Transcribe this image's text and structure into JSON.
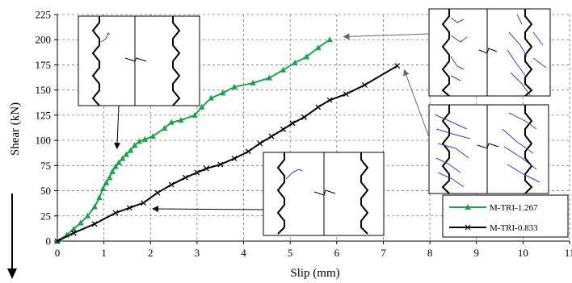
{
  "chart_data": {
    "type": "line",
    "xlabel": "Slip (mm)",
    "ylabel": "Shear (kN)",
    "xlim": [
      0,
      11
    ],
    "ylim": [
      0,
      225
    ],
    "x_ticks": [
      "0",
      "1",
      "2",
      "3",
      "4",
      "5",
      "6",
      "7",
      "8",
      "9",
      "10",
      "11"
    ],
    "y_ticks": [
      "0",
      "25",
      "50",
      "75",
      "100",
      "125",
      "150",
      "175",
      "200",
      "225"
    ],
    "grid": true,
    "legend_position": "bottom-right",
    "series": [
      {
        "name": "M-TRI-1.267",
        "color": "#1aa34a",
        "marker": "triangle",
        "x": [
          0,
          0.2,
          0.35,
          0.5,
          0.65,
          0.8,
          0.9,
          0.98,
          1.05,
          1.12,
          1.18,
          1.25,
          1.32,
          1.4,
          1.48,
          1.57,
          1.66,
          1.76,
          1.88,
          2.05,
          2.3,
          2.45,
          2.65,
          2.95,
          3.1,
          3.3,
          3.55,
          3.8,
          4.2,
          4.55,
          4.85,
          5.1,
          5.35,
          5.6,
          5.85
        ],
        "y": [
          0,
          6,
          12,
          18,
          25,
          34,
          43,
          52,
          58,
          63,
          69,
          74,
          78,
          82,
          86,
          90,
          95,
          99,
          101,
          104,
          112,
          118,
          120,
          125,
          133,
          142,
          147,
          153,
          157,
          162,
          170,
          177,
          183,
          192,
          200
        ]
      },
      {
        "name": "M-TRI-0.833",
        "color": "#000000",
        "marker": "x",
        "x": [
          0,
          0.35,
          0.8,
          1.25,
          1.55,
          1.85,
          2.15,
          2.45,
          2.75,
          3.0,
          3.2,
          3.5,
          3.8,
          4.1,
          4.35,
          4.6,
          4.85,
          5.05,
          5.3,
          5.6,
          5.85,
          6.2,
          6.6,
          7.3
        ],
        "y": [
          0,
          8,
          17,
          28,
          33,
          38,
          48,
          56,
          63,
          68,
          72,
          76,
          82,
          89,
          97,
          104,
          111,
          117,
          123,
          133,
          140,
          146,
          155,
          174
        ]
      }
    ],
    "annotations": [
      {
        "points_to_series": "M-TRI-1.267",
        "arrow_tip_x": 1.28,
        "arrow_tip_y": 92
      },
      {
        "points_to_series": "M-TRI-0.833",
        "arrow_tip_x": 2.05,
        "arrow_tip_y": 32
      },
      {
        "points_to_series": "M-TRI-1.267",
        "arrow_tip_x": 6.15,
        "arrow_tip_y": 203
      },
      {
        "points_to_series": "M-TRI-0.833",
        "arrow_tip_x": 7.45,
        "arrow_tip_y": 170
      }
    ]
  }
}
